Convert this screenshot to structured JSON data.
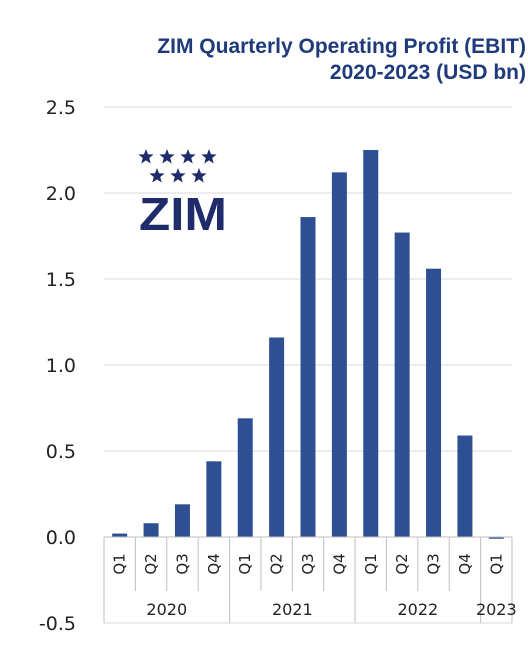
{
  "title": {
    "line1": "ZIM Quarterly Operating Profit (EBIT)",
    "line2": "2020-2023 (USD bn)"
  },
  "logo": {
    "text": "ZIM",
    "icon": "star-icon",
    "color": "#1f2b6b"
  },
  "colors": {
    "bar": "#2e4f93",
    "grid": "#d9d9d9",
    "axis": "#bfbfbf"
  },
  "chart_data": {
    "type": "bar",
    "categories": [
      "Q1",
      "Q2",
      "Q3",
      "Q4",
      "Q1",
      "Q2",
      "Q3",
      "Q4",
      "Q1",
      "Q2",
      "Q3",
      "Q4",
      "Q1"
    ],
    "groups": [
      {
        "label": "2020",
        "count": 4
      },
      {
        "label": "2021",
        "count": 4
      },
      {
        "label": "2022",
        "count": 4
      },
      {
        "label": "2023",
        "count": 1
      }
    ],
    "values": [
      0.02,
      0.08,
      0.19,
      0.44,
      0.69,
      1.16,
      1.86,
      2.12,
      2.25,
      1.77,
      1.56,
      0.59,
      -0.01
    ],
    "ylim": [
      -0.5,
      2.5
    ],
    "yticks": [
      "2.5",
      "2.0",
      "1.5",
      "1.0",
      "0.5",
      "0.0",
      "-0.5"
    ],
    "ytick_values": [
      2.5,
      2.0,
      1.5,
      1.0,
      0.5,
      0.0,
      -0.5
    ],
    "grid": true,
    "legend": "none"
  }
}
